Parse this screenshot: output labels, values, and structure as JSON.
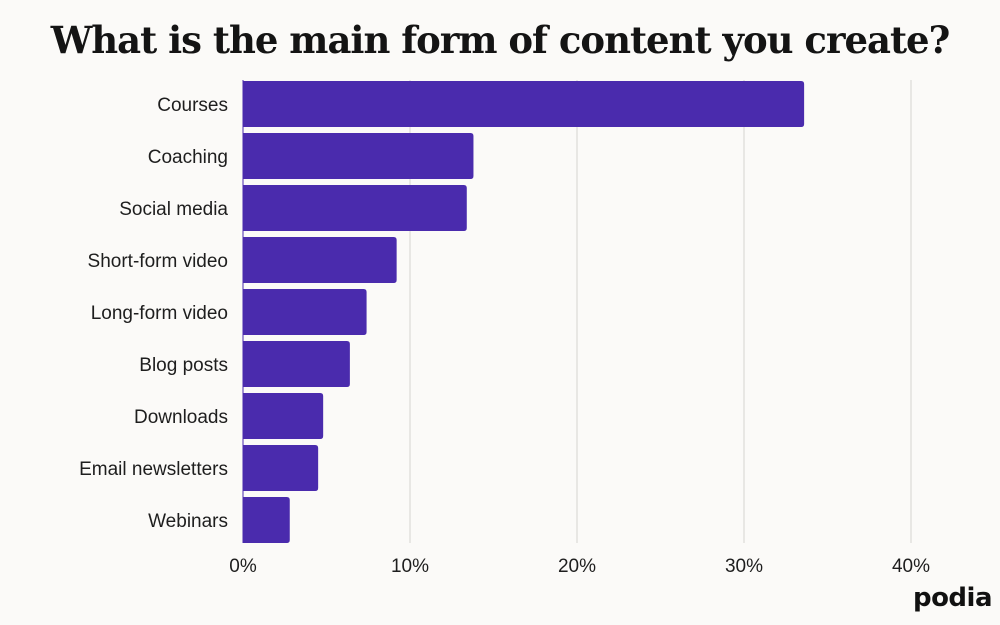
{
  "chart_data": {
    "type": "bar",
    "orientation": "horizontal",
    "title": "What is the main form of content you create?",
    "categories": [
      "Courses",
      "Coaching",
      "Social media",
      "Short-form video",
      "Long-form video",
      "Blog posts",
      "Downloads",
      "Email newsletters",
      "Webinars"
    ],
    "values": [
      33.6,
      13.8,
      13.4,
      9.2,
      7.4,
      6.4,
      4.8,
      4.5,
      2.8
    ],
    "value_unit": "%",
    "xlim": [
      0,
      40
    ],
    "xticks": [
      0,
      10,
      20,
      30,
      40
    ],
    "xtick_labels": [
      "0%",
      "10%",
      "20%",
      "30%",
      "40%"
    ],
    "xlabel": "",
    "ylabel": "",
    "grid": true,
    "bar_color": "#4a2bad",
    "grid_color": "#dcdad6"
  },
  "brand": {
    "logo_text": "podia"
  }
}
